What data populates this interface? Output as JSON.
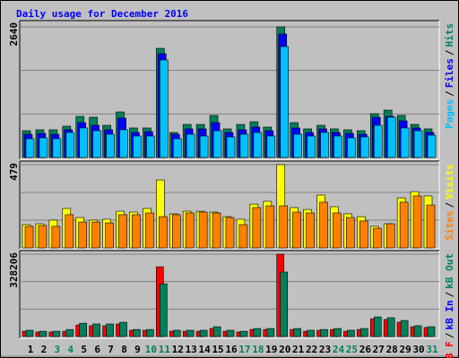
{
  "chart_data": [
    {
      "type": "bar",
      "title": "Daily usage for December 2016",
      "ylim": [
        0,
        2640
      ],
      "yticks": [
        2640
      ],
      "separator": "/",
      "series": [
        {
          "name": "Hits",
          "color": "#00805c",
          "values": [
            542,
            561,
            561,
            633,
            832,
            814,
            651,
            922,
            597,
            597,
            2206,
            506,
            669,
            669,
            850,
            579,
            669,
            723,
            615,
            2640,
            705,
            579,
            651,
            579,
            561,
            542,
            886,
            958,
            850,
            669,
            579
          ]
        },
        {
          "name": "Files",
          "color": "#0000ff",
          "values": [
            470,
            488,
            470,
            561,
            705,
            651,
            561,
            796,
            506,
            524,
            2097,
            470,
            579,
            579,
            705,
            506,
            561,
            615,
            542,
            2495,
            597,
            506,
            579,
            506,
            488,
            470,
            814,
            832,
            741,
            597,
            506
          ]
        },
        {
          "name": "Pages",
          "color": "#00c0ff",
          "values": [
            380,
            398,
            380,
            506,
            597,
            542,
            470,
            561,
            434,
            434,
            1971,
            380,
            470,
            434,
            542,
            416,
            470,
            506,
            434,
            2242,
            470,
            434,
            506,
            434,
            398,
            416,
            651,
            814,
            597,
            542,
            452
          ]
        }
      ]
    },
    {
      "type": "bar",
      "ylim": [
        0,
        479
      ],
      "yticks": [
        479
      ],
      "separator": "/",
      "series": [
        {
          "name": "Visits",
          "color": "#ffff00",
          "values": [
            134,
            139,
            160,
            227,
            175,
            160,
            165,
            211,
            206,
            227,
            391,
            196,
            211,
            211,
            206,
            180,
            165,
            252,
            268,
            479,
            232,
            221,
            304,
            237,
            196,
            180,
            124,
            139,
            288,
            324,
            299
          ]
        },
        {
          "name": "Sites",
          "color": "#ff8000",
          "values": [
            124,
            129,
            124,
            191,
            149,
            149,
            144,
            191,
            191,
            201,
            180,
            191,
            201,
            206,
            201,
            175,
            134,
            232,
            242,
            242,
            206,
            201,
            263,
            201,
            175,
            155,
            113,
            139,
            263,
            299,
            247
          ]
        }
      ]
    },
    {
      "type": "bar",
      "ylim": [
        0,
        328206
      ],
      "yticks": [
        328206
      ],
      "separator": "/",
      "legend": [
        "kB F",
        "kB In",
        "kB Out"
      ],
      "legend_colors": [
        "#ff0000",
        "#0000ff",
        "#00805c"
      ],
      "categories": [
        "1",
        "2",
        "3",
        "4",
        "5",
        "6",
        "7",
        "8",
        "9",
        "10",
        "11",
        "12",
        "13",
        "14",
        "15",
        "16",
        "17",
        "18",
        "19",
        "20",
        "21",
        "22",
        "23",
        "24",
        "25",
        "26",
        "27",
        "28",
        "29",
        "30",
        "31"
      ],
      "category_colors": [
        "#000000",
        "#000000",
        "#00805c",
        "#00805c",
        "#000000",
        "#000000",
        "#000000",
        "#000000",
        "#000000",
        "#00805c",
        "#00805c",
        "#000000",
        "#000000",
        "#000000",
        "#000000",
        "#000000",
        "#00805c",
        "#00805c",
        "#000000",
        "#000000",
        "#000000",
        "#000000",
        "#000000",
        "#00805c",
        "#00805c",
        "#000000",
        "#000000",
        "#000000",
        "#000000",
        "#000000",
        "#00805c"
      ],
      "series": [
        {
          "color": "#ff0000",
          "values": [
            21000,
            18000,
            18000,
            21000,
            46000,
            43000,
            43000,
            50000,
            25000,
            25000,
            278000,
            21000,
            21000,
            21000,
            32000,
            21000,
            18000,
            28000,
            28000,
            328206,
            28000,
            21000,
            25000,
            28000,
            21000,
            28000,
            71000,
            68000,
            57000,
            39000,
            36000
          ]
        },
        {
          "color": "#00805c",
          "values": [
            25000,
            21000,
            21000,
            28000,
            53000,
            50000,
            50000,
            57000,
            28000,
            28000,
            210000,
            25000,
            25000,
            25000,
            39000,
            25000,
            21000,
            32000,
            32000,
            257000,
            32000,
            25000,
            28000,
            32000,
            25000,
            32000,
            78000,
            75000,
            64000,
            43000,
            39000
          ]
        }
      ]
    }
  ]
}
